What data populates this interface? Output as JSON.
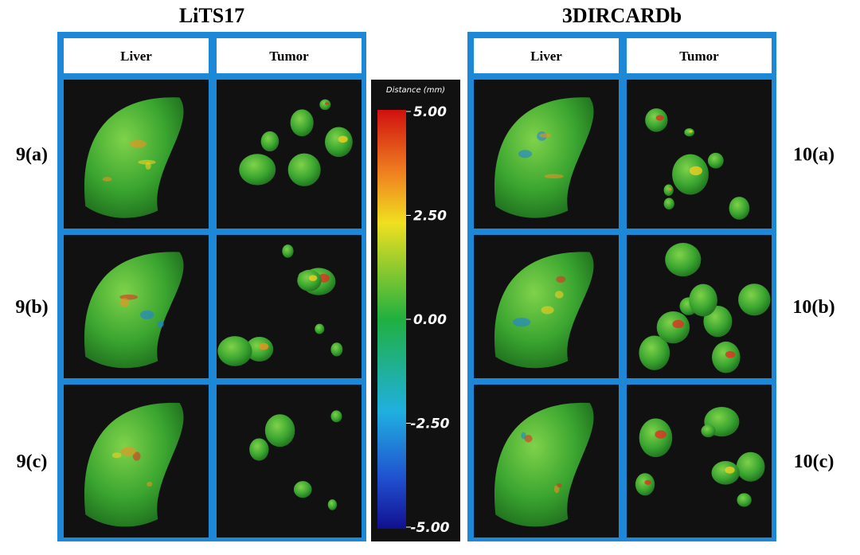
{
  "panels": [
    {
      "title": "LiTS17",
      "columns": [
        "Liver",
        "Tumor"
      ],
      "rows": [
        "9(a)",
        "9(b)",
        "9(c)"
      ]
    },
    {
      "title": "3DIRCARDb",
      "columns": [
        "Liver",
        "Tumor"
      ],
      "rows": [
        "10(a)",
        "10(b)",
        "10(c)"
      ]
    }
  ],
  "colorbar": {
    "title": "Distance (mm)",
    "ticks": [
      {
        "value": 5,
        "label": "5.00"
      },
      {
        "value": 2.5,
        "label": "2.50"
      },
      {
        "value": 0,
        "label": "0.00"
      },
      {
        "value": -2.5,
        "label": "-2.50"
      },
      {
        "value": -5,
        "label": "-5.00"
      }
    ]
  }
}
